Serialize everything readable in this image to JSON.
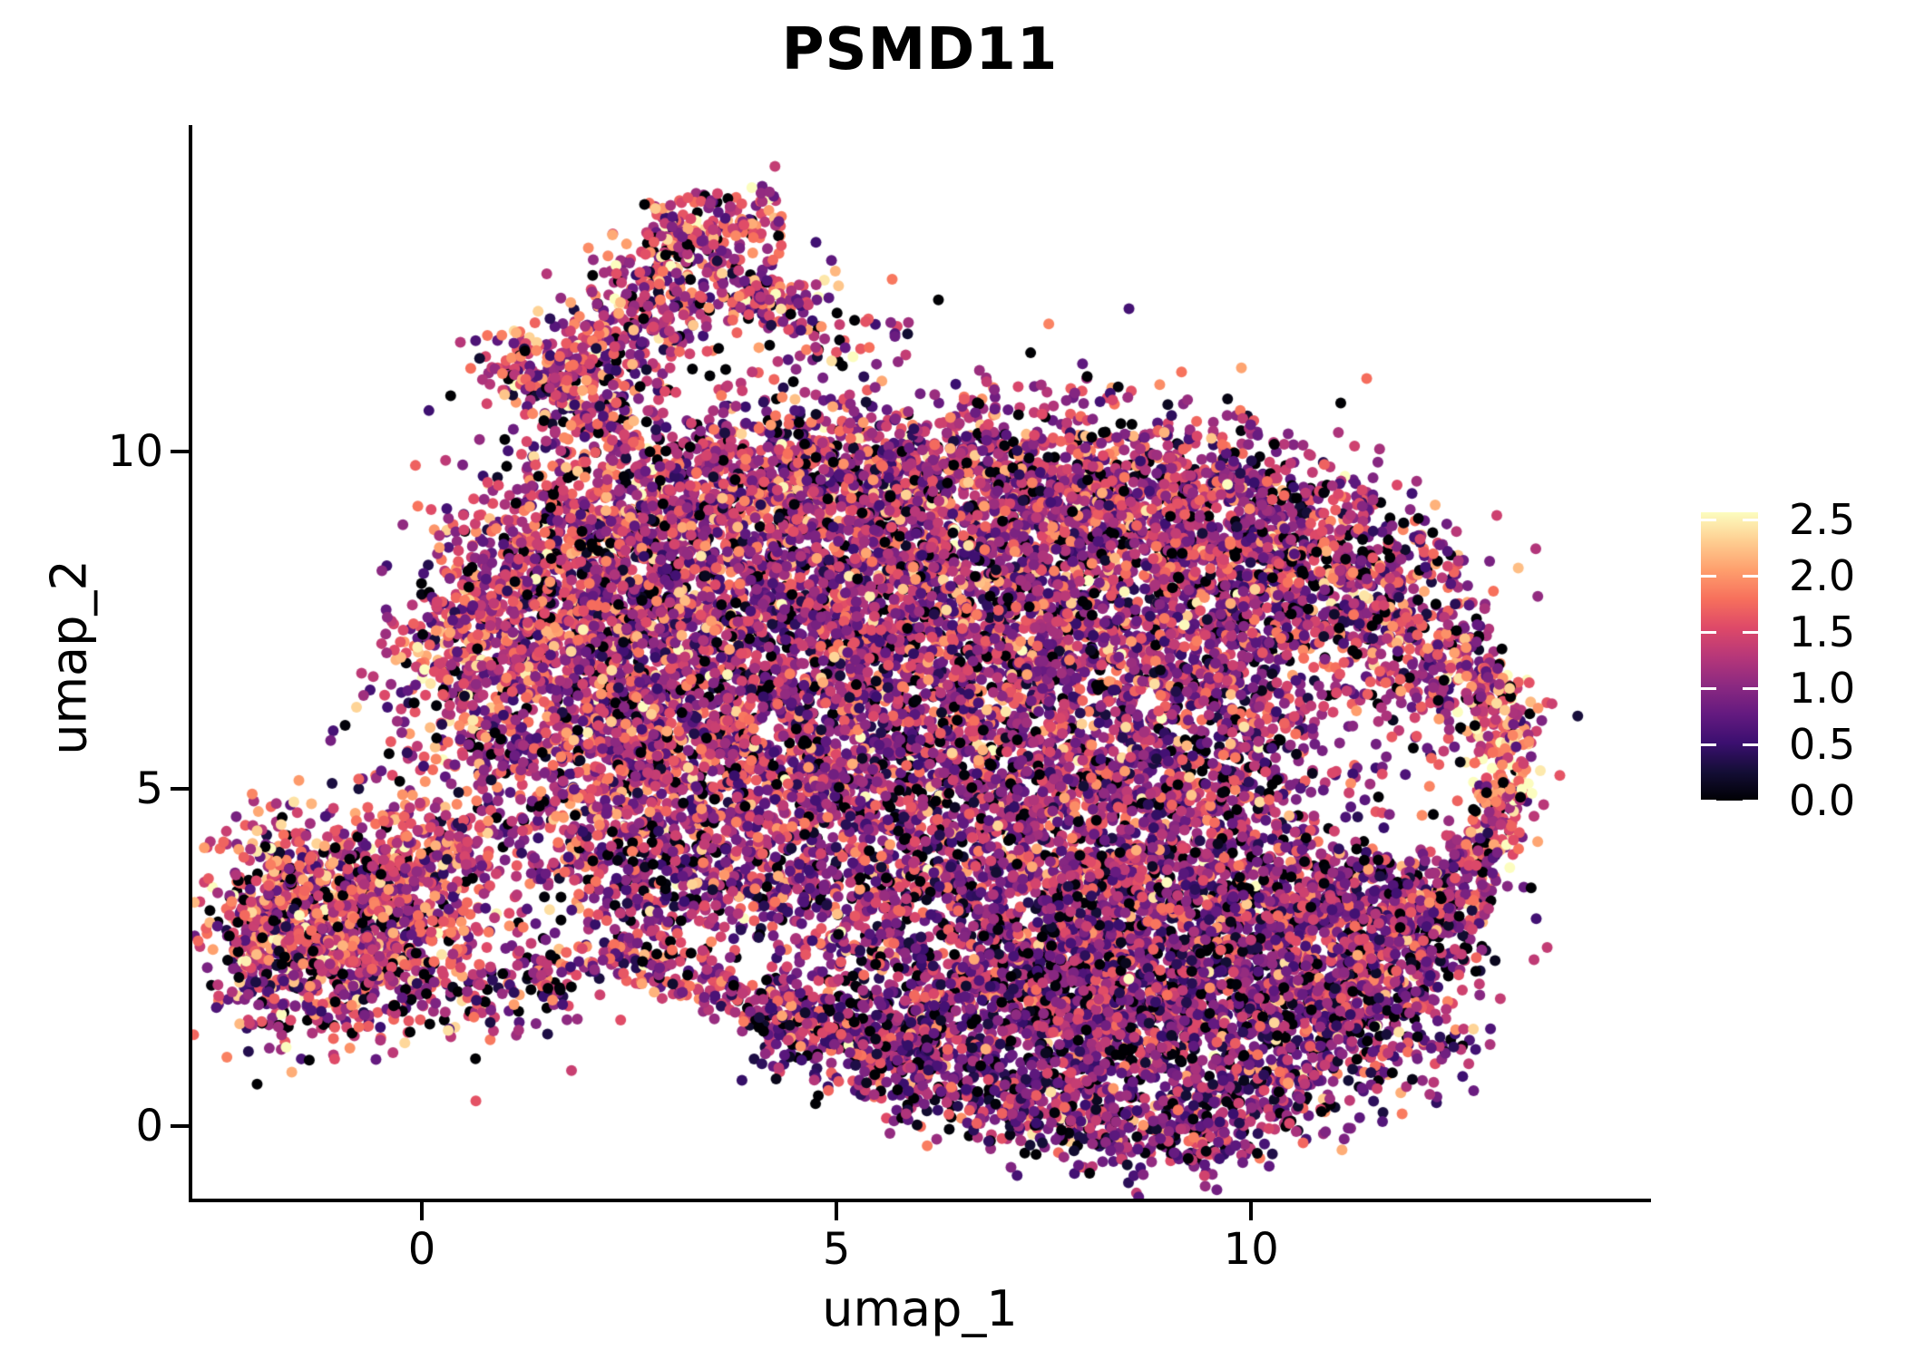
{
  "chart_data": {
    "type": "scatter",
    "title": "PSMD11",
    "xlabel": "umap_1",
    "ylabel": "umap_2",
    "x_ticks": [
      0,
      5,
      10
    ],
    "y_ticks": [
      0,
      5,
      10
    ],
    "xlim": [
      -2.79,
      14.8
    ],
    "ylim": [
      -1.1,
      14.81
    ],
    "grid": false,
    "background": "#ffffff",
    "axis_color": "#000000",
    "point_radius_px": 6,
    "legend": {
      "position": "right",
      "ticks": [
        0.0,
        0.5,
        1.0,
        1.5,
        2.0,
        2.5
      ],
      "tick_labels": [
        "0.0",
        "0.5",
        "1.0",
        "1.5",
        "2.0",
        "2.5"
      ],
      "color_vmax": 2.565,
      "colormap": "magma"
    },
    "colormap_stops": [
      "#000004",
      "#140e36",
      "#3b0f70",
      "#641a80",
      "#8c2981",
      "#b73779",
      "#de4968",
      "#f7705c",
      "#fe9f6d",
      "#fece91",
      "#fcfdbf"
    ],
    "value_model": {
      "p_zero": 0.09,
      "sigma": 0.55,
      "vmin": 0.03,
      "vmax": 2.58
    },
    "seed": 42,
    "cluster_schema": "g:[type,cx,cy,sx,sy,n,mu] gaussian blob; s:[type,x1,y1,x2,y2,w,n,mu] line strip; u:[type,x1,y1,x2,y2,n,mu] uniform box. Coords in umap data units, n = cells, mu = mean PSMD11 expression",
    "clusters": [
      [
        "s",
        1.5,
        10.7,
        3.45,
        13.15,
        0.4,
        480,
        1.35
      ],
      [
        "s",
        2.7,
        13.3,
        4.35,
        13.5,
        0.25,
        150,
        1.4
      ],
      [
        "g",
        4.15,
        12.25,
        0.3,
        0.28,
        100,
        1.3
      ],
      [
        "g",
        1.15,
        11.2,
        0.3,
        0.33,
        70,
        1.3
      ],
      [
        "g",
        2.0,
        10.35,
        0.55,
        0.4,
        80,
        1.25
      ],
      [
        "g",
        3.45,
        11.45,
        0.85,
        0.65,
        60,
        1.2
      ],
      [
        "g",
        4.9,
        11.9,
        0.45,
        0.5,
        50,
        1.25
      ],
      [
        "g",
        -1.1,
        3.45,
        0.72,
        0.62,
        620,
        1.5
      ],
      [
        "g",
        -1.35,
        2.3,
        0.55,
        0.5,
        380,
        1.25
      ],
      [
        "g",
        -0.15,
        2.85,
        0.55,
        0.7,
        340,
        1.3
      ],
      [
        "g",
        0.2,
        4.15,
        0.42,
        0.32,
        120,
        1.35
      ],
      [
        "g",
        -1.85,
        3.1,
        0.25,
        0.8,
        110,
        1.3
      ],
      [
        "g",
        0.9,
        1.9,
        0.5,
        0.4,
        70,
        1.15
      ],
      [
        "g",
        0.3,
        5.2,
        0.7,
        0.5,
        45,
        1.2
      ],
      [
        "g",
        0.65,
        7.1,
        0.45,
        0.7,
        260,
        1.45
      ],
      [
        "g",
        1.35,
        7.9,
        0.65,
        0.85,
        420,
        1.3
      ],
      [
        "g",
        2.3,
        8.7,
        0.75,
        0.7,
        430,
        1.3
      ],
      [
        "g",
        3.5,
        9.35,
        0.85,
        0.6,
        430,
        1.25
      ],
      [
        "g",
        5.0,
        9.7,
        0.95,
        0.55,
        470,
        1.25
      ],
      [
        "g",
        6.8,
        9.6,
        0.95,
        0.55,
        480,
        1.2
      ],
      [
        "g",
        8.4,
        9.35,
        0.8,
        0.65,
        430,
        1.25
      ],
      [
        "g",
        9.6,
        8.9,
        0.7,
        0.75,
        380,
        1.15
      ],
      [
        "g",
        2.5,
        7.4,
        0.85,
        0.75,
        450,
        1.2
      ],
      [
        "g",
        4.2,
        8.0,
        0.95,
        0.85,
        500,
        1.15
      ],
      [
        "g",
        6.0,
        8.3,
        0.95,
        0.8,
        520,
        1.15
      ],
      [
        "g",
        7.8,
        8.05,
        0.95,
        0.8,
        520,
        1.2
      ],
      [
        "g",
        1.8,
        6.0,
        0.75,
        0.8,
        400,
        1.25
      ],
      [
        "g",
        3.3,
        6.3,
        0.9,
        0.85,
        460,
        1.15
      ],
      [
        "g",
        5.0,
        6.6,
        0.95,
        0.85,
        480,
        1.1
      ],
      [
        "g",
        6.7,
        6.6,
        0.9,
        0.85,
        480,
        1.15
      ],
      [
        "g",
        8.4,
        6.7,
        0.9,
        0.85,
        470,
        1.15
      ],
      [
        "g",
        9.9,
        7.6,
        0.6,
        0.9,
        340,
        1.1
      ],
      [
        "g",
        2.5,
        4.9,
        0.85,
        0.7,
        380,
        1.2
      ],
      [
        "g",
        4.2,
        5.0,
        0.95,
        0.75,
        420,
        1.12
      ],
      [
        "g",
        5.9,
        4.9,
        0.95,
        0.75,
        420,
        1.1
      ],
      [
        "g",
        7.5,
        4.9,
        0.85,
        0.7,
        400,
        1.12
      ],
      [
        "g",
        8.9,
        5.0,
        0.75,
        0.7,
        350,
        1.1
      ],
      [
        "g",
        10.0,
        5.6,
        0.55,
        0.9,
        300,
        1.05
      ],
      [
        "g",
        2.4,
        3.7,
        0.8,
        0.5,
        220,
        1.2
      ],
      [
        "g",
        3.9,
        3.6,
        0.85,
        0.5,
        230,
        1.12
      ],
      [
        "g",
        5.4,
        3.5,
        0.85,
        0.48,
        220,
        1.1
      ],
      [
        "g",
        6.9,
        3.45,
        0.8,
        0.48,
        210,
        1.1
      ],
      [
        "g",
        8.3,
        3.6,
        0.75,
        0.48,
        200,
        1.1
      ],
      [
        "g",
        10.6,
        8.6,
        0.75,
        0.6,
        330,
        1.15
      ],
      [
        "g",
        11.4,
        7.9,
        0.6,
        0.7,
        300,
        1.15
      ],
      [
        "g",
        12.1,
        7.15,
        0.45,
        0.6,
        220,
        1.25
      ],
      [
        "s",
        12.6,
        6.9,
        13.2,
        5.6,
        0.25,
        150,
        1.55
      ],
      [
        "g",
        13.05,
        5.25,
        0.2,
        0.35,
        70,
        1.9
      ],
      [
        "s",
        13.1,
        5.0,
        12.75,
        3.95,
        0.25,
        120,
        1.45
      ],
      [
        "s",
        12.7,
        3.9,
        12.15,
        2.95,
        0.28,
        130,
        1.2
      ],
      [
        "g",
        11.65,
        5.55,
        0.85,
        1.0,
        60,
        1.05
      ],
      [
        "s",
        4.05,
        1.8,
        6.2,
        1.3,
        0.35,
        340,
        0.95
      ],
      [
        "g",
        6.9,
        1.5,
        0.8,
        0.7,
        420,
        0.95
      ],
      [
        "g",
        8.2,
        1.3,
        0.9,
        0.7,
        500,
        1.0
      ],
      [
        "g",
        9.6,
        1.6,
        0.9,
        0.75,
        540,
        1.0
      ],
      [
        "g",
        10.9,
        2.3,
        0.75,
        0.8,
        460,
        1.05
      ],
      [
        "g",
        11.8,
        3.1,
        0.55,
        0.6,
        280,
        1.1
      ],
      [
        "g",
        9.0,
        2.7,
        1.0,
        0.6,
        420,
        1.0
      ],
      [
        "g",
        10.3,
        3.5,
        0.85,
        0.5,
        340,
        1.05
      ],
      [
        "s",
        4.2,
        1.45,
        6.6,
        0.45,
        0.3,
        220,
        1.0
      ],
      [
        "s",
        6.6,
        0.45,
        8.9,
        -0.3,
        0.32,
        230,
        1.05
      ],
      [
        "s",
        8.9,
        -0.3,
        10.8,
        0.75,
        0.35,
        240,
        1.0
      ],
      [
        "g",
        11.5,
        1.55,
        0.6,
        0.65,
        260,
        1.05
      ],
      [
        "g",
        8.0,
        2.3,
        0.9,
        0.5,
        260,
        0.95
      ],
      [
        "s",
        2.3,
        2.7,
        4.1,
        1.75,
        0.22,
        160,
        1.15
      ],
      [
        "s",
        5.0,
        2.95,
        6.6,
        2.05,
        0.2,
        95,
        1.1
      ],
      [
        "s",
        6.6,
        2.05,
        8.3,
        2.8,
        0.22,
        105,
        1.05
      ],
      [
        "g",
        5.6,
        2.5,
        1.4,
        0.45,
        50,
        1.05
      ],
      [
        "s",
        1.4,
        2.0,
        2.3,
        2.7,
        0.25,
        70,
        1.15
      ],
      [
        "g",
        6.5,
        10.9,
        2.2,
        0.55,
        50,
        1.2
      ],
      [
        "g",
        0.1,
        6.2,
        0.55,
        0.75,
        60,
        1.3
      ],
      [
        "u",
        0.5,
        0.2,
        12.5,
        10.5,
        120,
        1.1
      ]
    ]
  }
}
